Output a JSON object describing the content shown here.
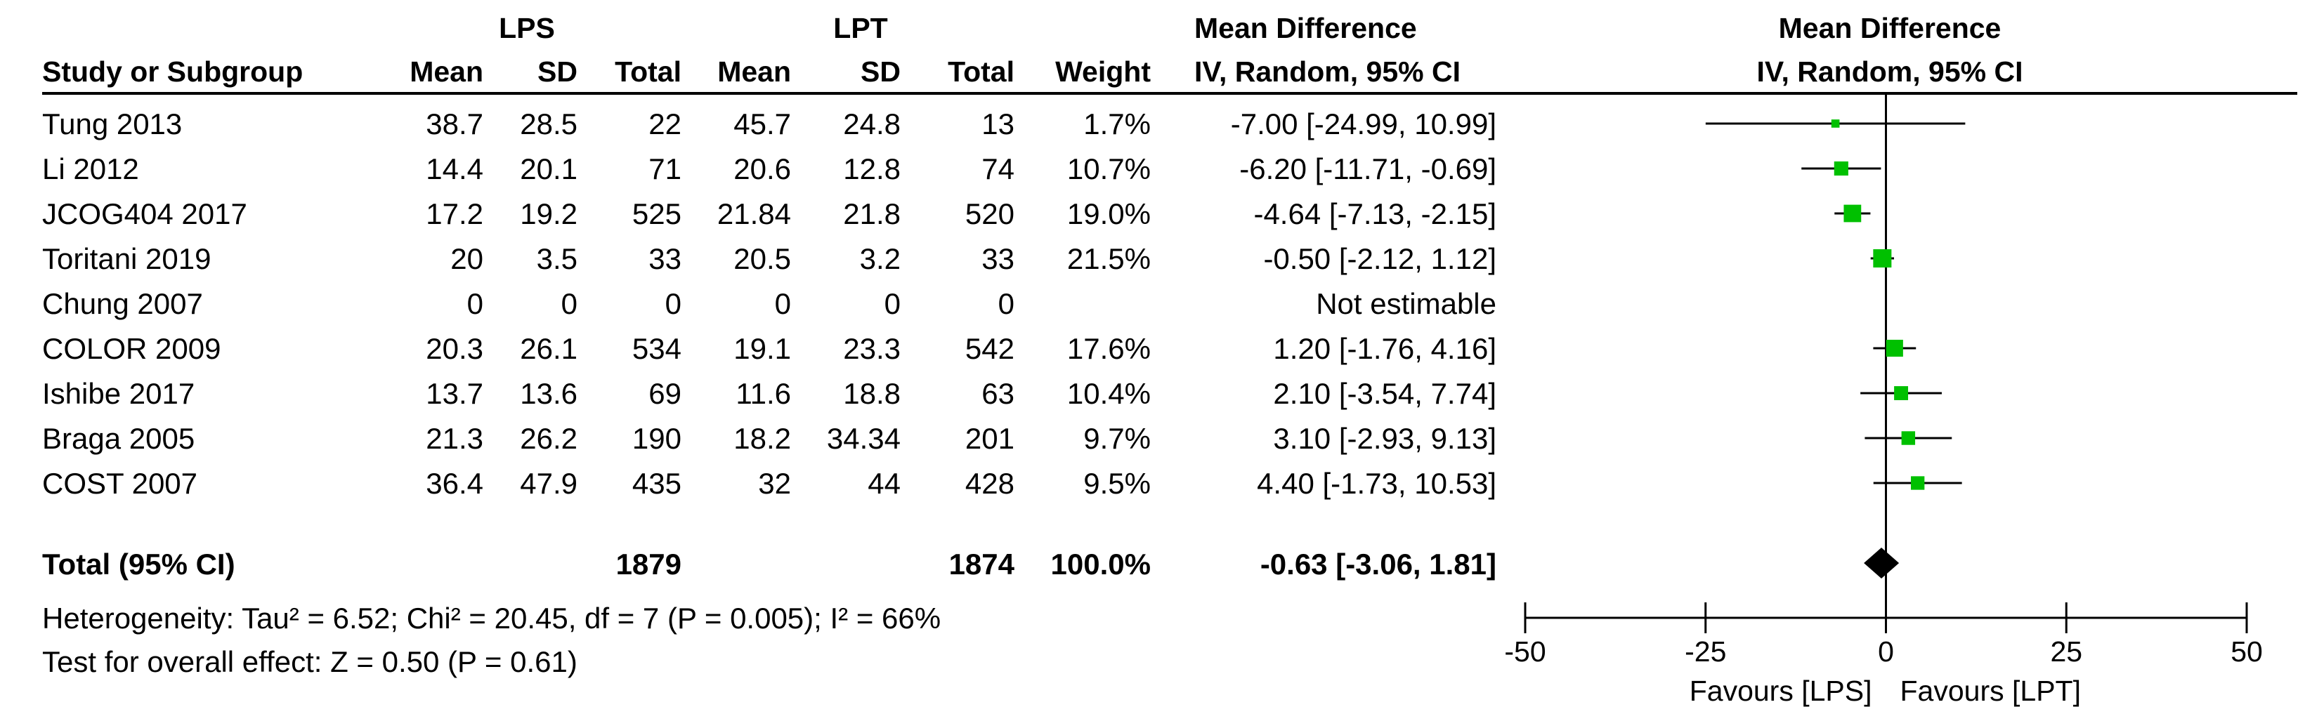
{
  "header": {
    "group1": "LPS",
    "group2": "LPT",
    "effect_title": "Mean Difference",
    "effect_method": "IV, Random, 95% CI",
    "plot_title": "Mean Difference",
    "plot_method": "IV, Random, 95% CI",
    "study_col": "Study or Subgroup",
    "mean1": "Mean",
    "sd1": "SD",
    "total1": "Total",
    "mean2": "Mean",
    "sd2": "SD",
    "total2": "Total",
    "weight": "Weight"
  },
  "rows": [
    {
      "study": "Tung 2013",
      "mean1": "38.7",
      "sd1": "28.5",
      "n1": "22",
      "mean2": "45.7",
      "sd2": "24.8",
      "n2": "13",
      "weight": "1.7%",
      "ci": "-7.00 [-24.99, 10.99]"
    },
    {
      "study": "Li 2012",
      "mean1": "14.4",
      "sd1": "20.1",
      "n1": "71",
      "mean2": "20.6",
      "sd2": "12.8",
      "n2": "74",
      "weight": "10.7%",
      "ci": "-6.20 [-11.71, -0.69]"
    },
    {
      "study": "JCOG404 2017",
      "mean1": "17.2",
      "sd1": "19.2",
      "n1": "525",
      "mean2": "21.84",
      "sd2": "21.8",
      "n2": "520",
      "weight": "19.0%",
      "ci": "-4.64 [-7.13, -2.15]"
    },
    {
      "study": "Toritani 2019",
      "mean1": "20",
      "sd1": "3.5",
      "n1": "33",
      "mean2": "20.5",
      "sd2": "3.2",
      "n2": "33",
      "weight": "21.5%",
      "ci": "-0.50 [-2.12, 1.12]"
    },
    {
      "study": "Chung 2007",
      "mean1": "0",
      "sd1": "0",
      "n1": "0",
      "mean2": "0",
      "sd2": "0",
      "n2": "0",
      "weight": "",
      "ci": "Not estimable"
    },
    {
      "study": "COLOR 2009",
      "mean1": "20.3",
      "sd1": "26.1",
      "n1": "534",
      "mean2": "19.1",
      "sd2": "23.3",
      "n2": "542",
      "weight": "17.6%",
      "ci": "1.20 [-1.76, 4.16]"
    },
    {
      "study": "Ishibe 2017",
      "mean1": "13.7",
      "sd1": "13.6",
      "n1": "69",
      "mean2": "11.6",
      "sd2": "18.8",
      "n2": "63",
      "weight": "10.4%",
      "ci": "2.10 [-3.54, 7.74]"
    },
    {
      "study": "Braga 2005",
      "mean1": "21.3",
      "sd1": "26.2",
      "n1": "190",
      "mean2": "18.2",
      "sd2": "34.34",
      "n2": "201",
      "weight": "9.7%",
      "ci": "3.10 [-2.93, 9.13]"
    },
    {
      "study": "COST 2007",
      "mean1": "36.4",
      "sd1": "47.9",
      "n1": "435",
      "mean2": "32",
      "sd2": "44",
      "n2": "428",
      "weight": "9.5%",
      "ci": "4.40 [-1.73, 10.53]"
    }
  ],
  "total": {
    "label": "Total (95% CI)",
    "n1": "1879",
    "n2": "1874",
    "weight": "100.0%",
    "ci": "-0.63 [-3.06, 1.81]"
  },
  "footer": {
    "heterogeneity": "Heterogeneity: Tau² = 6.52; Chi² = 20.45, df = 7 (P = 0.005); I² = 66%",
    "overall": "Test for overall effect: Z = 0.50 (P = 0.61)"
  },
  "chart_data": {
    "type": "forest",
    "xlim": [
      -50,
      50
    ],
    "ticks": [
      -50,
      -25,
      0,
      25,
      50
    ],
    "tick_labels": [
      "-50",
      "-25",
      "0",
      "25",
      "50"
    ],
    "favours_left": "Favours [LPS]",
    "favours_right": "Favours [LPT]",
    "marker_color": "#00c000",
    "studies": [
      {
        "name": "Tung 2013",
        "md": -7.0,
        "lo": -24.99,
        "hi": 10.99,
        "weight": 1.7
      },
      {
        "name": "Li 2012",
        "md": -6.2,
        "lo": -11.71,
        "hi": -0.69,
        "weight": 10.7
      },
      {
        "name": "JCOG404 2017",
        "md": -4.64,
        "lo": -7.13,
        "hi": -2.15,
        "weight": 19.0
      },
      {
        "name": "Toritani 2019",
        "md": -0.5,
        "lo": -2.12,
        "hi": 1.12,
        "weight": 21.5
      },
      {
        "name": "Chung 2007",
        "md": null,
        "lo": null,
        "hi": null,
        "weight": null
      },
      {
        "name": "COLOR 2009",
        "md": 1.2,
        "lo": -1.76,
        "hi": 4.16,
        "weight": 17.6
      },
      {
        "name": "Ishibe 2017",
        "md": 2.1,
        "lo": -3.54,
        "hi": 7.74,
        "weight": 10.4
      },
      {
        "name": "Braga 2005",
        "md": 3.1,
        "lo": -2.93,
        "hi": 9.13,
        "weight": 9.7
      },
      {
        "name": "COST 2007",
        "md": 4.4,
        "lo": -1.73,
        "hi": 10.53,
        "weight": 9.5
      }
    ],
    "pooled": {
      "md": -0.63,
      "lo": -3.06,
      "hi": 1.81
    }
  }
}
